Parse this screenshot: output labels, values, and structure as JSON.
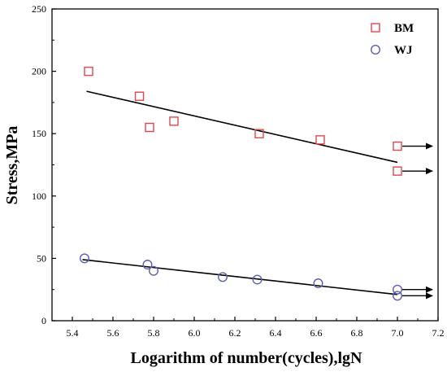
{
  "chart_data": {
    "type": "scatter",
    "xlabel": "Logarithm of number(cycles),lgN",
    "ylabel": "Stress,MPa",
    "xlim": [
      5.3,
      7.2
    ],
    "ylim": [
      0,
      250
    ],
    "xticks": [
      "5.4",
      "5.6",
      "5.8",
      "6.0",
      "6.2",
      "6.4",
      "6.6",
      "6.8",
      "7.0",
      "7.2"
    ],
    "yticks": [
      "0",
      "50",
      "100",
      "150",
      "200",
      "250"
    ],
    "grid": false,
    "legend_position": "top-right",
    "series": [
      {
        "name": "BM",
        "marker": "square",
        "color": "#e0474c",
        "points": [
          {
            "x": 5.48,
            "y": 200
          },
          {
            "x": 5.73,
            "y": 180
          },
          {
            "x": 5.78,
            "y": 155
          },
          {
            "x": 5.9,
            "y": 160
          },
          {
            "x": 6.32,
            "y": 150
          },
          {
            "x": 6.62,
            "y": 145
          },
          {
            "x": 7.0,
            "y": 140
          },
          {
            "x": 7.0,
            "y": 120
          }
        ],
        "runouts": [
          {
            "x": 7.0,
            "y": 140
          },
          {
            "x": 7.0,
            "y": 120
          }
        ],
        "fit": [
          {
            "x": 5.47,
            "y": 184
          },
          {
            "x": 7.0,
            "y": 127
          }
        ]
      },
      {
        "name": "WJ",
        "marker": "circle",
        "color": "#5b5fb0",
        "points": [
          {
            "x": 5.46,
            "y": 50
          },
          {
            "x": 5.77,
            "y": 45
          },
          {
            "x": 5.8,
            "y": 40
          },
          {
            "x": 6.14,
            "y": 35
          },
          {
            "x": 6.31,
            "y": 33
          },
          {
            "x": 6.61,
            "y": 30
          },
          {
            "x": 7.0,
            "y": 25
          },
          {
            "x": 7.0,
            "y": 20
          }
        ],
        "runouts": [
          {
            "x": 7.0,
            "y": 25
          },
          {
            "x": 7.0,
            "y": 20
          }
        ],
        "fit": [
          {
            "x": 5.45,
            "y": 49
          },
          {
            "x": 7.0,
            "y": 21
          }
        ]
      }
    ]
  }
}
